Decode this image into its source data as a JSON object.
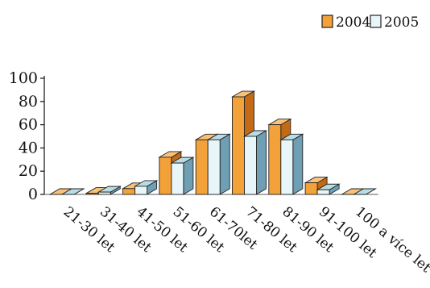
{
  "chart_data": {
    "type": "bar",
    "title": "",
    "xlabel": "",
    "ylabel": "",
    "categories": [
      "21-30 let",
      "31-40 let",
      "41-50 let",
      "51-60 let",
      "61-70let",
      "71-80 let",
      "81-90 let",
      "91-100 let",
      "100 a více let"
    ],
    "series": [
      {
        "name": "2004",
        "values": [
          0,
          1,
          5,
          32,
          47,
          84,
          60,
          10,
          0
        ]
      },
      {
        "name": "2005",
        "values": [
          0,
          2,
          7,
          27,
          47,
          50,
          47,
          4,
          0
        ]
      }
    ],
    "ylim": [
      0,
      100
    ],
    "yticks": [
      0,
      20,
      40,
      60,
      80,
      100
    ],
    "legend": "top-right",
    "grid": false,
    "three_d": true,
    "colors": {
      "2004": {
        "front": "#f3a23a",
        "top": "#f7c27a",
        "side": "#c46a16"
      },
      "2005": {
        "front": "#e9f6f9",
        "top": "#b9dde6",
        "side": "#6f9fb4"
      }
    }
  }
}
